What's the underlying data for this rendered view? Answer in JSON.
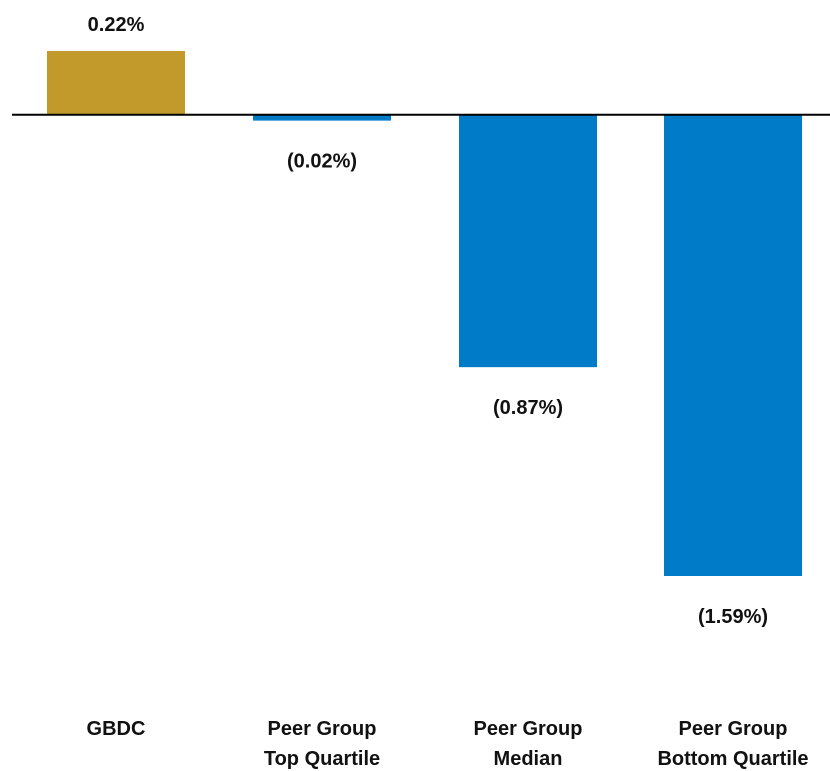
{
  "chart_data": {
    "type": "bar",
    "title": "",
    "xlabel": "",
    "ylabel": "",
    "ylim": [
      -1.59,
      0.22
    ],
    "grid": false,
    "categories": [
      [
        "GBDC"
      ],
      [
        "Peer Group",
        "Top Quartile"
      ],
      [
        "Peer Group",
        "Median"
      ],
      [
        "Peer Group",
        "Bottom Quartile"
      ]
    ],
    "values": [
      0.22,
      -0.02,
      -0.87,
      -1.59
    ],
    "value_labels": [
      "0.22%",
      "(0.02%)",
      "(0.87%)",
      "(1.59%)"
    ],
    "colors": [
      "#C29A2C",
      "#007BC7",
      "#007BC7",
      "#007BC7"
    ],
    "axis_line_color": "#000000"
  }
}
